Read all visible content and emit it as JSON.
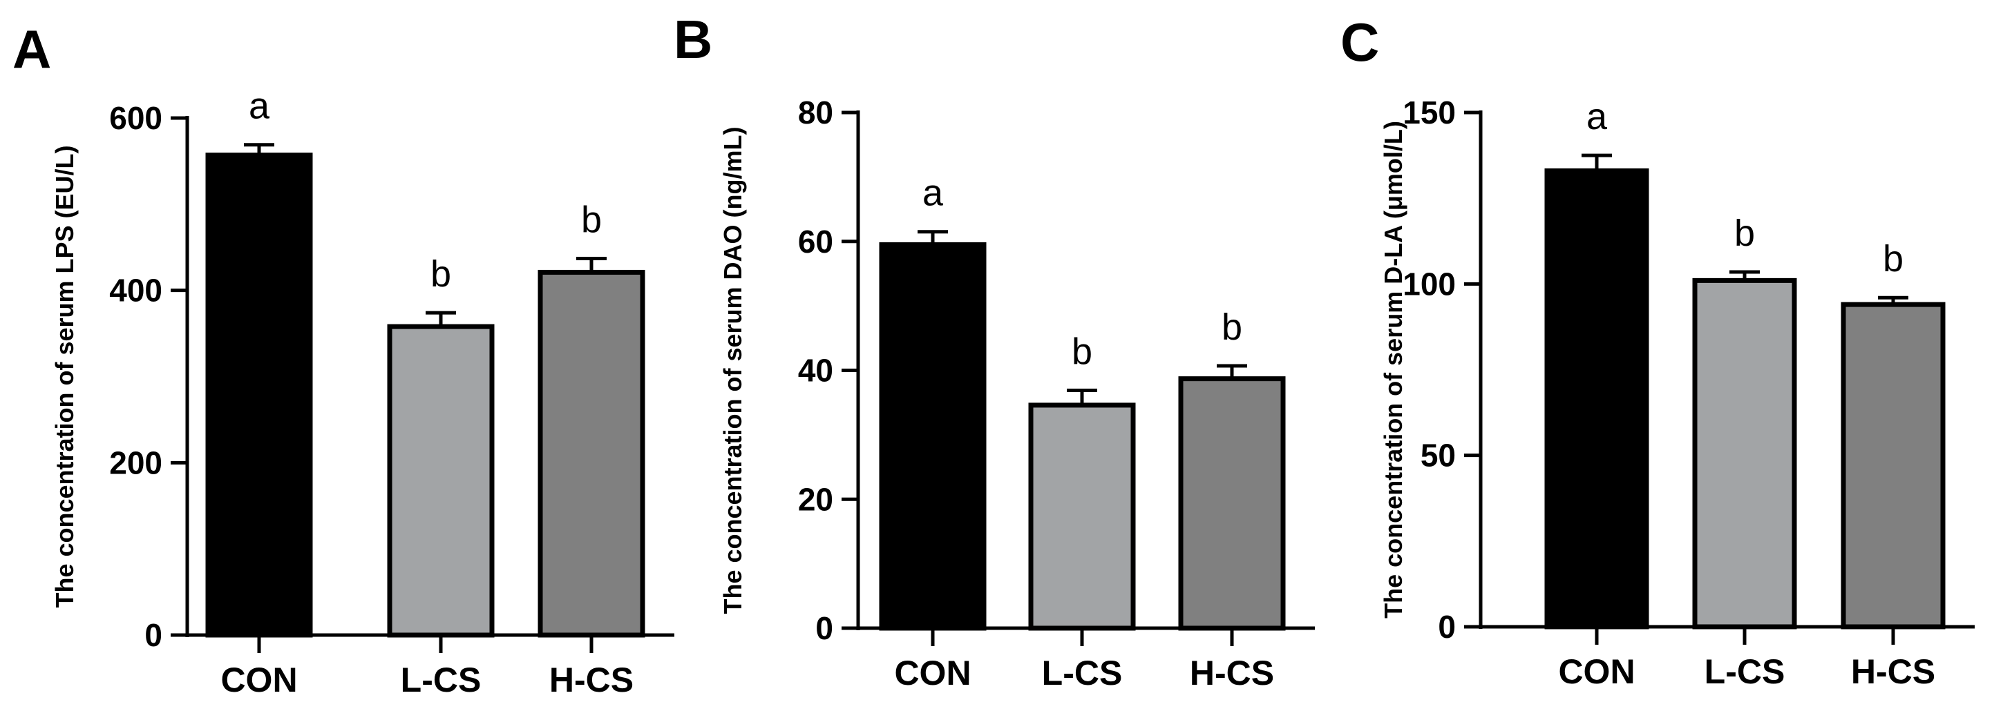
{
  "figure": {
    "colors": {
      "axis": "#000000",
      "bar_stroke": "#000000",
      "CON": "#000000",
      "L-CS": "#A2A4A6",
      "H-CS": "#808080"
    }
  },
  "chart_data": [
    {
      "panel": "A",
      "type": "bar",
      "ylabel": "The concentration of serum LPS (EU/L)",
      "categories": [
        "CON",
        "L-CS",
        "H-CS"
      ],
      "values": [
        557,
        358,
        421
      ],
      "errors": [
        12,
        16,
        16
      ],
      "significance": [
        "a",
        "b",
        "b"
      ],
      "ylim": [
        0,
        600
      ],
      "yticks": [
        0,
        200,
        400,
        600
      ],
      "grid": false
    },
    {
      "panel": "B",
      "type": "bar",
      "ylabel": "The concentration of serum DAO (ng/mL)",
      "categories": [
        "CON",
        "L-CS",
        "H-CS"
      ],
      "values": [
        59.5,
        34.6,
        38.7
      ],
      "errors": [
        2.0,
        2.3,
        2.0
      ],
      "significance": [
        "a",
        "b",
        "b"
      ],
      "ylim": [
        0,
        80
      ],
      "yticks": [
        0,
        20,
        40,
        60,
        80
      ],
      "grid": false
    },
    {
      "panel": "C",
      "type": "bar",
      "ylabel": "The concentration of serum D-LA (μmol/L)",
      "categories": [
        "CON",
        "L-CS",
        "H-CS"
      ],
      "values": [
        133,
        101,
        94
      ],
      "errors": [
        4.5,
        2.5,
        2.0
      ],
      "significance": [
        "a",
        "b",
        "b"
      ],
      "ylim": [
        0,
        150
      ],
      "yticks": [
        0,
        50,
        100,
        150
      ],
      "grid": false
    }
  ]
}
